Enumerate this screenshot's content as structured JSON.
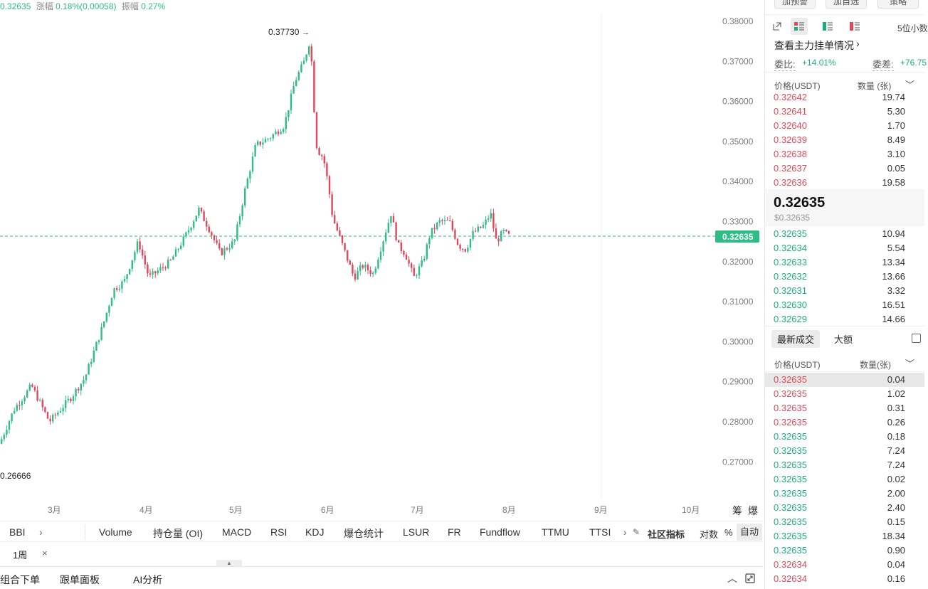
{
  "top_stats": {
    "price": "0.32635",
    "change_label": "涨幅",
    "change_value": "0.18%(0.00058)",
    "amplitude_label": "振幅",
    "amplitude_value": "0.27%"
  },
  "chart": {
    "high_label": "0.37730",
    "low_label": "0.26666",
    "current_price_tag": "0.32635",
    "y_axis_labels": [
      "0.38000",
      "0.37000",
      "0.36000",
      "0.35000",
      "0.34000",
      "0.33000",
      "0.32000",
      "0.31000",
      "0.30000",
      "0.29000",
      "0.28000",
      "0.27000"
    ],
    "x_axis_labels": [
      "3月",
      "4月",
      "5月",
      "6月",
      "7月",
      "8月",
      "9月",
      "10月"
    ],
    "corner_labels": [
      "筹",
      "爆"
    ],
    "colors": {
      "up": "#2ebd85",
      "down": "#e0475a",
      "price_line": "#2ebd85"
    }
  },
  "indicators": {
    "items": [
      "BBI",
      "Volume",
      "持仓量 (OI)",
      "MACD",
      "RSI",
      "KDJ",
      "爆仓统计",
      "LSUR",
      "FR",
      "Fundflow",
      "TTMU",
      "TTSI"
    ],
    "community": "社区指标",
    "log": "对数",
    "percent": "%",
    "auto": "自动"
  },
  "tabs": {
    "period": "1周",
    "close": "×"
  },
  "bottom_bar": {
    "combo_order": "组合下单",
    "copy_panel": "跟单面板",
    "ai_analysis": "AI分析"
  },
  "right_panel": {
    "top_buttons": [
      "加预警",
      "加自选",
      "策略"
    ],
    "decimal_select": "5位小数",
    "main_orders_link": "查看主力挂单情况",
    "ratio_label": "委比:",
    "ratio_value": "+14.01%",
    "diff_label": "委差:",
    "diff_value": "+76.75",
    "orderbook_header_price": "价格(USDT)",
    "orderbook_header_qty": "数量 (张)",
    "asks": [
      {
        "price": "0.32642",
        "qty": "19.74"
      },
      {
        "price": "0.32641",
        "qty": "5.30"
      },
      {
        "price": "0.32640",
        "qty": "1.70"
      },
      {
        "price": "0.32639",
        "qty": "8.49"
      },
      {
        "price": "0.32638",
        "qty": "3.10"
      },
      {
        "price": "0.32637",
        "qty": "0.05"
      },
      {
        "price": "0.32636",
        "qty": "19.58"
      }
    ],
    "last_price": "0.32635",
    "last_price_usd": "$0.32635",
    "bids": [
      {
        "price": "0.32635",
        "qty": "10.94"
      },
      {
        "price": "0.32634",
        "qty": "5.54"
      },
      {
        "price": "0.32633",
        "qty": "13.34"
      },
      {
        "price": "0.32632",
        "qty": "13.66"
      },
      {
        "price": "0.32631",
        "qty": "3.32"
      },
      {
        "price": "0.32630",
        "qty": "16.51"
      },
      {
        "price": "0.32629",
        "qty": "14.66"
      }
    ],
    "trades_tab_latest": "最新成交",
    "trades_tab_large": "大额",
    "trades_header_price": "价格(USDT)",
    "trades_header_qty": "数量(张)",
    "trades": [
      {
        "price": "0.32635",
        "qty": "0.04",
        "side": "sell"
      },
      {
        "price": "0.32635",
        "qty": "1.02",
        "side": "sell"
      },
      {
        "price": "0.32635",
        "qty": "0.31",
        "side": "sell"
      },
      {
        "price": "0.32635",
        "qty": "0.26",
        "side": "sell"
      },
      {
        "price": "0.32635",
        "qty": "0.18",
        "side": "buy"
      },
      {
        "price": "0.32635",
        "qty": "7.24",
        "side": "buy"
      },
      {
        "price": "0.32635",
        "qty": "7.24",
        "side": "buy"
      },
      {
        "price": "0.32635",
        "qty": "0.02",
        "side": "buy"
      },
      {
        "price": "0.32635",
        "qty": "2.00",
        "side": "buy"
      },
      {
        "price": "0.32635",
        "qty": "2.40",
        "side": "buy"
      },
      {
        "price": "0.32635",
        "qty": "0.15",
        "side": "buy"
      },
      {
        "price": "0.32635",
        "qty": "18.34",
        "side": "buy"
      },
      {
        "price": "0.32635",
        "qty": "0.90",
        "side": "buy"
      },
      {
        "price": "0.32634",
        "qty": "0.04",
        "side": "sell"
      },
      {
        "price": "0.32634",
        "qty": "0.16",
        "side": "sell"
      }
    ]
  }
}
